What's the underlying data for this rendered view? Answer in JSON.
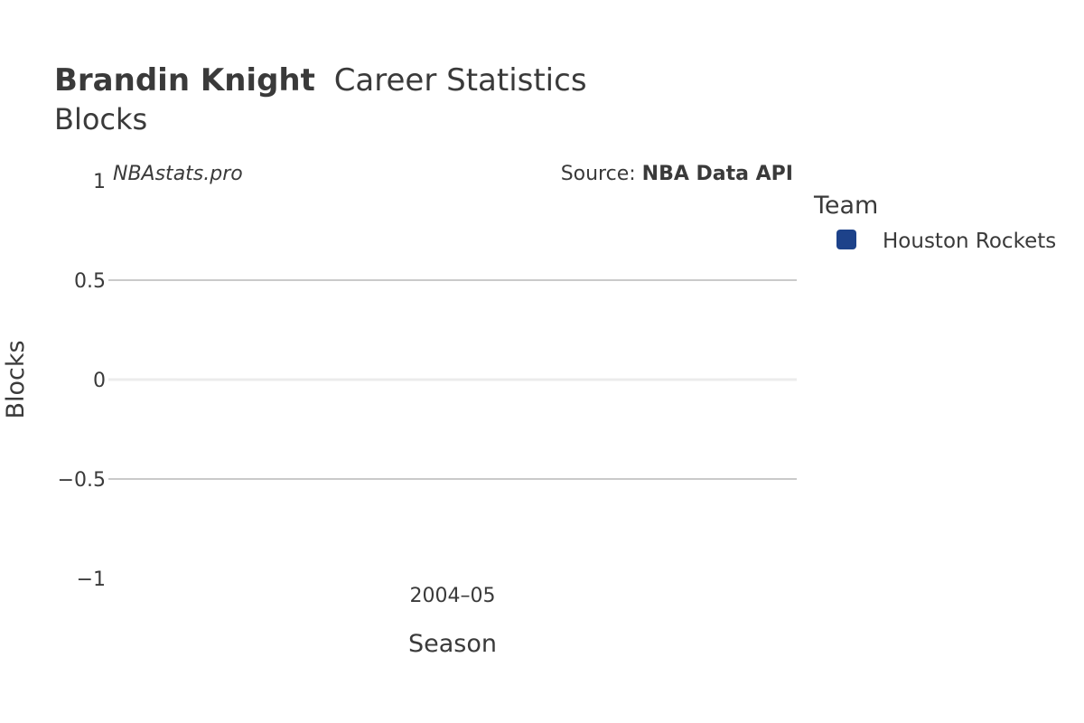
{
  "title": {
    "player": "Brandin Knight",
    "rest": "Career Statistics",
    "subtitle": "Blocks"
  },
  "watermark": "NBAstats.pro",
  "source": {
    "prefix": "Source: ",
    "name": "NBA Data API"
  },
  "legend": {
    "title": "Team",
    "items": [
      {
        "label": "Houston Rockets",
        "color": "#1d428a"
      }
    ]
  },
  "chart_data": {
    "type": "bar",
    "categories": [
      "2004–05"
    ],
    "series": [
      {
        "name": "Houston Rockets",
        "values": [
          0
        ],
        "color": "#1d428a"
      }
    ],
    "xlabel": "Season",
    "ylabel": "Blocks",
    "ylim": [
      -1,
      1
    ],
    "yticks": [
      -1,
      -0.5,
      0,
      0.5,
      1
    ],
    "ytick_labels": [
      "−1",
      "−0.5",
      "0",
      "0.5",
      "1"
    ],
    "grid": true,
    "legend_position": "right"
  }
}
